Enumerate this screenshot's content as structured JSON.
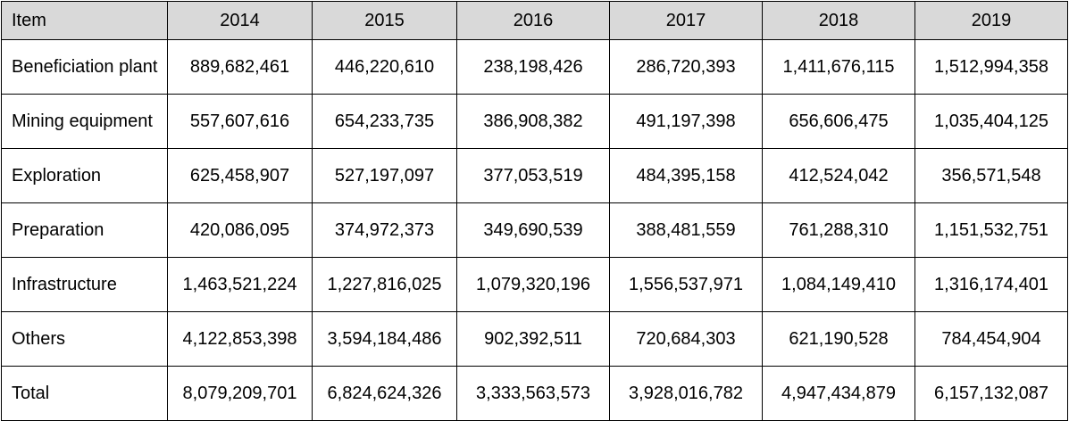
{
  "table": {
    "columns": [
      "Item",
      "2014",
      "2015",
      "2016",
      "2017",
      "2018",
      "2019"
    ],
    "rows": [
      {
        "label": "Beneficiation plant",
        "values": [
          "889,682,461",
          "446,220,610",
          "238,198,426",
          "286,720,393",
          "1,411,676,115",
          "1,512,994,358"
        ]
      },
      {
        "label": "Mining equipment",
        "values": [
          "557,607,616",
          "654,233,735",
          "386,908,382",
          "491,197,398",
          "656,606,475",
          "1,035,404,125"
        ]
      },
      {
        "label": "Exploration",
        "values": [
          "625,458,907",
          "527,197,097",
          "377,053,519",
          "484,395,158",
          "412,524,042",
          "356,571,548"
        ]
      },
      {
        "label": "Preparation",
        "values": [
          "420,086,095",
          "374,972,373",
          "349,690,539",
          "388,481,559",
          "761,288,310",
          "1,151,532,751"
        ]
      },
      {
        "label": "Infrastructure",
        "values": [
          "1,463,521,224",
          "1,227,816,025",
          "1,079,320,196",
          "1,556,537,971",
          "1,084,149,410",
          "1,316,174,401"
        ]
      },
      {
        "label": "Others",
        "values": [
          "4,122,853,398",
          "3,594,184,486",
          "902,392,511",
          "720,684,303",
          "621,190,528",
          "784,454,904"
        ]
      },
      {
        "label": "Total",
        "values": [
          "8,079,209,701",
          "6,824,624,326",
          "3,333,563,573",
          "3,928,016,782",
          "4,947,434,879",
          "6,157,132,087"
        ]
      }
    ]
  },
  "colors": {
    "header_background": "#d9d9d9",
    "border": "#000000",
    "text": "#000000"
  }
}
